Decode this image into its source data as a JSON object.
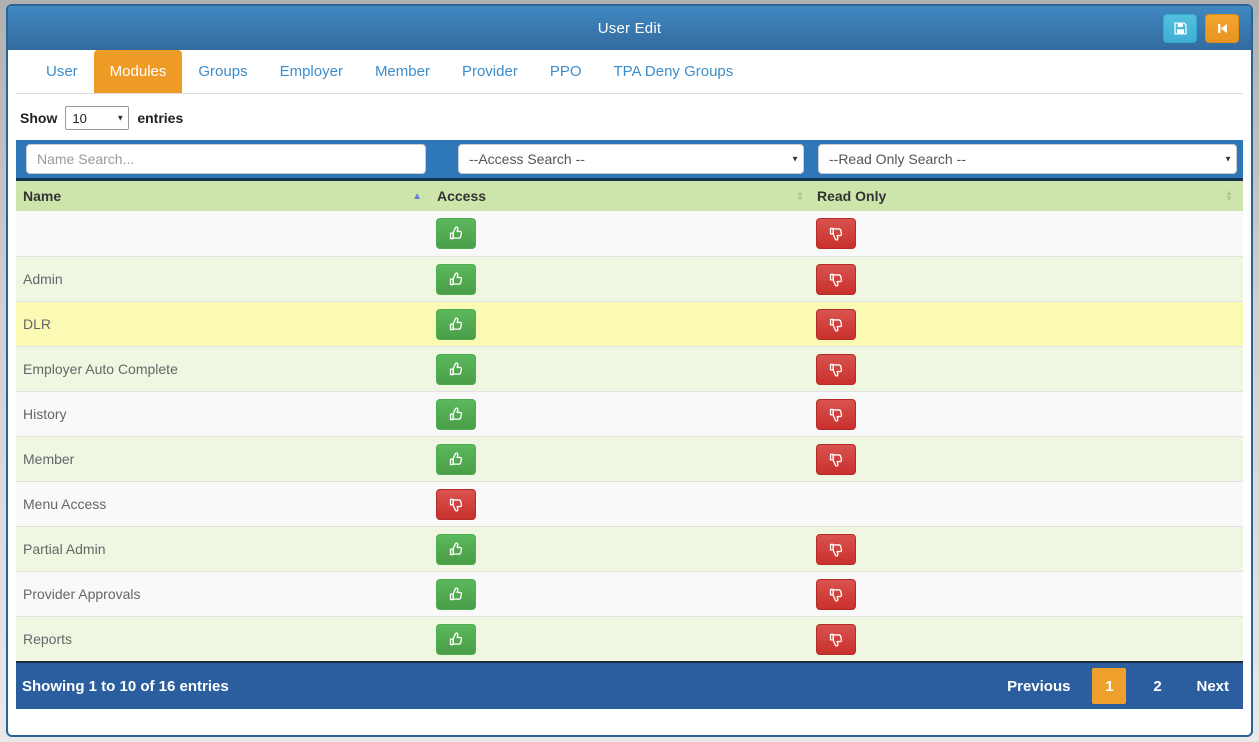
{
  "window": {
    "title": "User Edit"
  },
  "titlebar_actions": {
    "save_icon": "floppy-save-icon",
    "back_icon": "step-backward-icon"
  },
  "tabs": [
    {
      "label": "User",
      "active": false
    },
    {
      "label": "Modules",
      "active": true
    },
    {
      "label": "Groups",
      "active": false
    },
    {
      "label": "Employer",
      "active": false
    },
    {
      "label": "Member",
      "active": false
    },
    {
      "label": "Provider",
      "active": false
    },
    {
      "label": "PPO",
      "active": false
    },
    {
      "label": "TPA Deny Groups",
      "active": false
    }
  ],
  "length_control": {
    "prefix": "Show",
    "selected": "10",
    "suffix": "entries"
  },
  "filters": {
    "name_placeholder": "Name Search...",
    "access_selected": "--Access Search --",
    "readonly_selected": "--Read Only Search --"
  },
  "table": {
    "columns": [
      {
        "label": "Name",
        "sort": "asc"
      },
      {
        "label": "Access",
        "sort": "none"
      },
      {
        "label": "Read Only",
        "sort": "none"
      }
    ],
    "rows": [
      {
        "name": "",
        "access": "allow",
        "read_only": "deny",
        "highlight": false
      },
      {
        "name": "Admin",
        "access": "allow",
        "read_only": "deny",
        "highlight": false
      },
      {
        "name": "DLR",
        "access": "allow",
        "read_only": "deny",
        "highlight": true
      },
      {
        "name": "Employer Auto Complete",
        "access": "allow",
        "read_only": "deny",
        "highlight": false
      },
      {
        "name": "History",
        "access": "allow",
        "read_only": "deny",
        "highlight": false
      },
      {
        "name": "Member",
        "access": "allow",
        "read_only": "deny",
        "highlight": false
      },
      {
        "name": "Menu Access",
        "access": "deny",
        "read_only": null,
        "highlight": false
      },
      {
        "name": "Partial Admin",
        "access": "allow",
        "read_only": "deny",
        "highlight": false
      },
      {
        "name": "Provider Approvals",
        "access": "allow",
        "read_only": "deny",
        "highlight": false
      },
      {
        "name": "Reports",
        "access": "allow",
        "read_only": "deny",
        "highlight": false
      }
    ]
  },
  "footer": {
    "info": "Showing 1 to 10 of 16 entries",
    "previous_label": "Previous",
    "pages": [
      {
        "label": "1",
        "active": true
      },
      {
        "label": "2",
        "active": false
      }
    ],
    "next_label": "Next"
  },
  "colors": {
    "header_blue": "#3d82bc",
    "card_border": "#2a6496",
    "active_tab_orange": "#ef9b28",
    "filter_bar_blue": "#2e77b8",
    "table_header_green": "#cde5ab",
    "even_row_green": "#eff7e3",
    "highlight_yellow": "#fafab4",
    "allow_green": "#5cb85c",
    "deny_red": "#d9534f",
    "footer_blue": "#2b5e9e",
    "active_page_orange": "#efa02c"
  }
}
